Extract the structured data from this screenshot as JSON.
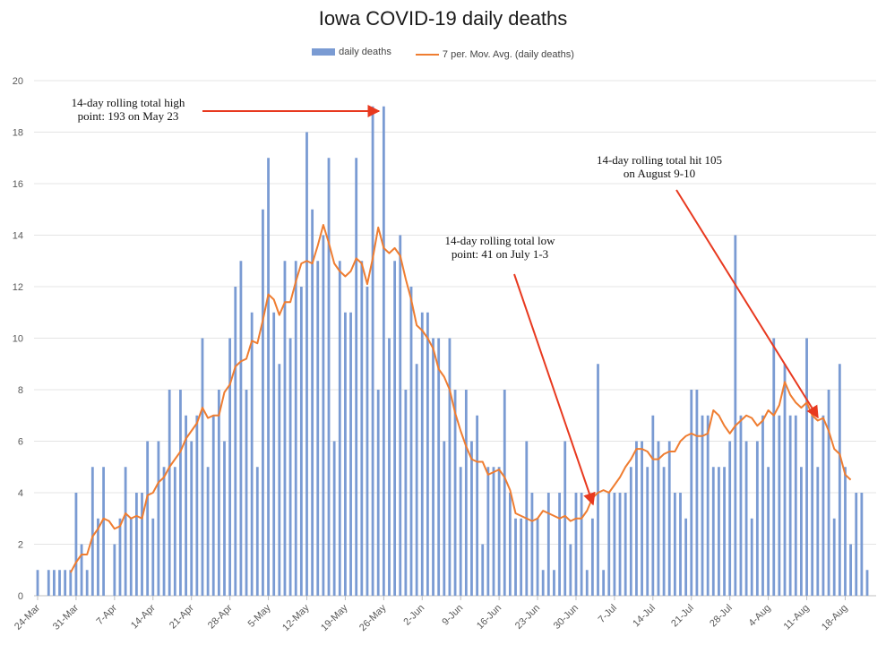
{
  "chart_data": {
    "type": "bar",
    "title": "Iowa COVID-19 daily deaths",
    "xlabel": "",
    "ylabel": "",
    "ylim": [
      0,
      20
    ],
    "yticks": [
      0,
      2,
      4,
      6,
      8,
      10,
      12,
      14,
      16,
      18,
      20
    ],
    "grid": true,
    "legend_position": "top",
    "start_date": "24-Mar",
    "x_tick_labels": [
      "24-Mar",
      "31-Mar",
      "7-Apr",
      "14-Apr",
      "21-Apr",
      "28-Apr",
      "5-May",
      "12-May",
      "19-May",
      "26-May",
      "2-Jun",
      "9-Jun",
      "16-Jun",
      "23-Jun",
      "30-Jun",
      "7-Jul",
      "14-Jul",
      "21-Jul",
      "28-Jul",
      "4-Aug",
      "11-Aug",
      "18-Aug"
    ],
    "series": [
      {
        "name": "daily deaths",
        "kind": "bar",
        "color": "#7a9bd3",
        "values": [
          1,
          0,
          1,
          1,
          1,
          1,
          1,
          4,
          2,
          1,
          5,
          3,
          5,
          0,
          2,
          3,
          5,
          3,
          4,
          4,
          6,
          3,
          6,
          5,
          8,
          5,
          8,
          7,
          6,
          7,
          10,
          5,
          7,
          8,
          6,
          10,
          12,
          13,
          8,
          11,
          5,
          15,
          17,
          11,
          9,
          13,
          10,
          13,
          12,
          18,
          15,
          13,
          14,
          17,
          6,
          13,
          11,
          11,
          17,
          13,
          12,
          19,
          8,
          19,
          10,
          13,
          14,
          8,
          12,
          9,
          11,
          11,
          10,
          10,
          6,
          10,
          8,
          5,
          8,
          6,
          7,
          2,
          5,
          5,
          5,
          8,
          4,
          3,
          3,
          6,
          4,
          3,
          1,
          4,
          1,
          4,
          6,
          2,
          4,
          4,
          1,
          3,
          9,
          1,
          4,
          4,
          4,
          4,
          5,
          6,
          6,
          5,
          7,
          6,
          5,
          6,
          4,
          4,
          3,
          8,
          8,
          7,
          7,
          5,
          5,
          5,
          6,
          14,
          7,
          6,
          3,
          6,
          7,
          5,
          10,
          7,
          9,
          7,
          7,
          5,
          10,
          7,
          5,
          7,
          8,
          3,
          9,
          5,
          2,
          4,
          4,
          1
        ]
      },
      {
        "name": "7 per. Mov. Avg. (daily deaths)",
        "kind": "line",
        "color": "#ef7d31",
        "values": [
          null,
          null,
          null,
          null,
          null,
          null,
          0.9,
          1.3,
          1.6,
          1.6,
          2.3,
          2.6,
          3.0,
          2.9,
          2.6,
          2.7,
          3.2,
          3.0,
          3.1,
          3.0,
          3.9,
          4.0,
          4.4,
          4.6,
          5.0,
          5.3,
          5.6,
          6.1,
          6.4,
          6.7,
          7.3,
          6.9,
          7.0,
          7.0,
          7.9,
          8.2,
          8.9,
          9.1,
          9.2,
          9.9,
          9.8,
          10.7,
          11.7,
          11.5,
          10.9,
          11.4,
          11.4,
          12.2,
          12.9,
          13.0,
          12.9,
          13.6,
          14.4,
          13.7,
          12.9,
          12.6,
          12.4,
          12.6,
          13.1,
          12.9,
          12.1,
          13.1,
          14.3,
          13.5,
          13.3,
          13.5,
          13.2,
          12.3,
          11.5,
          10.5,
          10.3,
          10.0,
          9.6,
          8.8,
          8.5,
          8.0,
          7.1,
          6.4,
          5.8,
          5.3,
          5.2,
          5.2,
          4.7,
          4.8,
          4.9,
          4.6,
          4.1,
          3.2,
          3.1,
          3.0,
          2.9,
          3.0,
          3.3,
          3.2,
          3.1,
          3.0,
          3.1,
          2.9,
          3.0,
          3.0,
          3.3,
          3.8,
          4.0,
          4.1,
          4.0,
          4.3,
          4.6,
          5.0,
          5.3,
          5.7,
          5.7,
          5.6,
          5.3,
          5.3,
          5.5,
          5.6,
          5.6,
          6.0,
          6.2,
          6.3,
          6.2,
          6.2,
          6.3,
          7.2,
          7.0,
          6.6,
          6.3,
          6.6,
          6.8,
          7.0,
          6.9,
          6.6,
          6.8,
          7.2,
          7.0,
          7.4,
          8.3,
          7.8,
          7.5,
          7.3,
          7.5,
          7.0,
          6.8,
          6.9,
          6.4,
          5.7,
          5.5,
          4.7,
          4.5
        ]
      }
    ],
    "annotations": [
      {
        "lines": [
          "14-day rolling total high",
          "point: 193 on May 23"
        ]
      },
      {
        "lines": [
          "14-day rolling total low",
          "point: 41 on July 1-3"
        ]
      },
      {
        "lines": [
          "14-day rolling total hit 105",
          "on August 9-10"
        ]
      }
    ]
  }
}
